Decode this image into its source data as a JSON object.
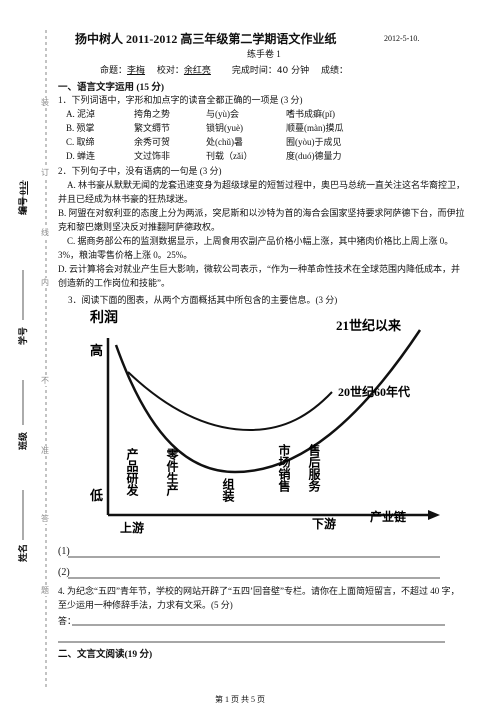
{
  "header": {
    "title": "扬中树人 2011-2012 高三年级第二学期语文作业纸",
    "date": "2012-5-10.",
    "subtitle": "练手卷 1",
    "info": [
      "命题：",
      "李梅",
      "校对：",
      "余红亮",
      "完成时间：40 分钟",
      "成绩："
    ]
  },
  "margin": {
    "seal": [
      "装",
      "订",
      "线",
      "内",
      "不",
      "准",
      "答",
      "题"
    ],
    "fields": [
      "编号",
      "012",
      "学号",
      "班级",
      "姓名"
    ]
  },
  "section1": {
    "title": "一、语言文字运用 (15 分)",
    "q1": {
      "stem": "1．下列词语中，字形和加点字的读音全都正确的一项是 (3 分)",
      "rows": [
        [
          "A. 泥淖",
          "挎角之势",
          "与(yù)会",
          "嗜书成癖(pǐ)"
        ],
        [
          "B. 殒掌",
          "繁文缛节",
          "锁钥(yuè)",
          "顺蔓(màn)摸瓜"
        ],
        [
          "C. 取缔",
          "余秀可贺",
          "处(chǔ)暑",
          "囿(yòu)于成见"
        ],
        [
          "D. 蝉连",
          "文过饰非",
          "刊载（zǎi）",
          "度(duó)德量力"
        ]
      ]
    },
    "q2": {
      "stem": "2．下列句子中，没有语病的一句是 (3 分)",
      "options": [
        "A. 林书豪从默默无闻的龙套迅速变身为超级球星的短暂过程中，奥巴马总统一直关注这名华裔控卫，并且已经成为林书豪的狂热球迷。",
        "B. 阿盟在对叙利亚的态度上分为两派，突尼斯和以沙特为首的海合会国家坚持要求阿萨德下台，而伊拉克和黎巴嫩则坚决反对推翻阿萨德政权。",
        "C. 据商务部公布的监测数据显示，上周食用农副产品价格小幅上涨，其中猪肉价格比上周上涨 0。3%，粮油零售价格上涨 0。25%。",
        "D. 云计算将会对就业产生巨大影响，微软公司表示，“作为一种革命性技术在全球范围内降低成本，并创造新的工作岗位和技能”。"
      ]
    },
    "q3": {
      "stem": "3．阅读下面的图表，从两个方面概括其中所包含的主要信息。(3 分)",
      "diagram": {
        "y_label": "利润",
        "high": "高",
        "low": "低",
        "upstream": "上游",
        "downstream": "下游",
        "x_label": "产业链",
        "curves": [
          "21世纪以来",
          "20世纪60年代"
        ],
        "stages": [
          "产品研发",
          "零件生产",
          "组装",
          "市场销售",
          "售后服务"
        ]
      },
      "answers": [
        "(1)",
        "(2)"
      ]
    },
    "q4": {
      "stem": "4. 为纪念“五四”青年节，学校的网站开辟了“五四’回音壁”专栏。请你在上面简短留言，不超过 40 字，至少运用一种修辞手法，力求有文采。(5 分)",
      "answer": "答："
    }
  },
  "section2": {
    "title": "二、文言文阅读(19 分)"
  },
  "footer": "第 1 页 共 5 页"
}
